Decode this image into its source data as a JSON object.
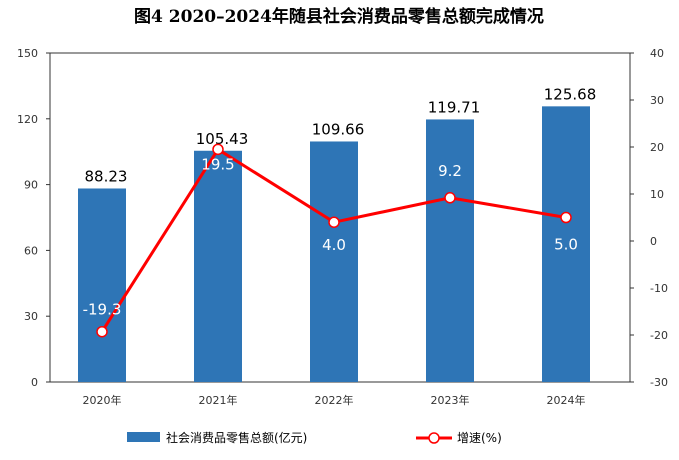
{
  "chart_data": {
    "type": "bar+line",
    "title": "图4   2020–2024年随县社会消费品零售总额完成情况",
    "categories": [
      "2020年",
      "2021年",
      "2022年",
      "2023年",
      "2024年"
    ],
    "series": [
      {
        "name": "社会消费品零售总额(亿元)",
        "type": "bar",
        "axis": "left",
        "values": [
          88.23,
          105.43,
          109.66,
          119.71,
          125.68
        ],
        "labels": [
          "88.23",
          "105.43",
          "109.66",
          "119.71",
          "125.68"
        ],
        "color": "#2E75B6"
      },
      {
        "name": "增速(%)",
        "type": "line",
        "axis": "right",
        "values": [
          -19.3,
          19.5,
          4.0,
          9.2,
          5.0
        ],
        "labels": [
          "-19.3",
          "19.5",
          "4.0",
          "9.2",
          "5.0"
        ],
        "color": "#FF0000"
      }
    ],
    "left_axis": {
      "ylim": [
        0,
        150
      ],
      "ticks": [
        "0",
        "30",
        "60",
        "90",
        "120",
        "150"
      ],
      "tick_values": [
        0,
        30,
        60,
        90,
        120,
        150
      ]
    },
    "right_axis": {
      "ylim": [
        -30,
        40
      ],
      "ticks": [
        "-30",
        "-20",
        "-10",
        "0",
        "10",
        "20",
        "30",
        "40"
      ],
      "tick_values": [
        -30,
        -20,
        -10,
        0,
        10,
        20,
        30,
        40
      ]
    },
    "grid": false,
    "legend_position": "bottom"
  }
}
